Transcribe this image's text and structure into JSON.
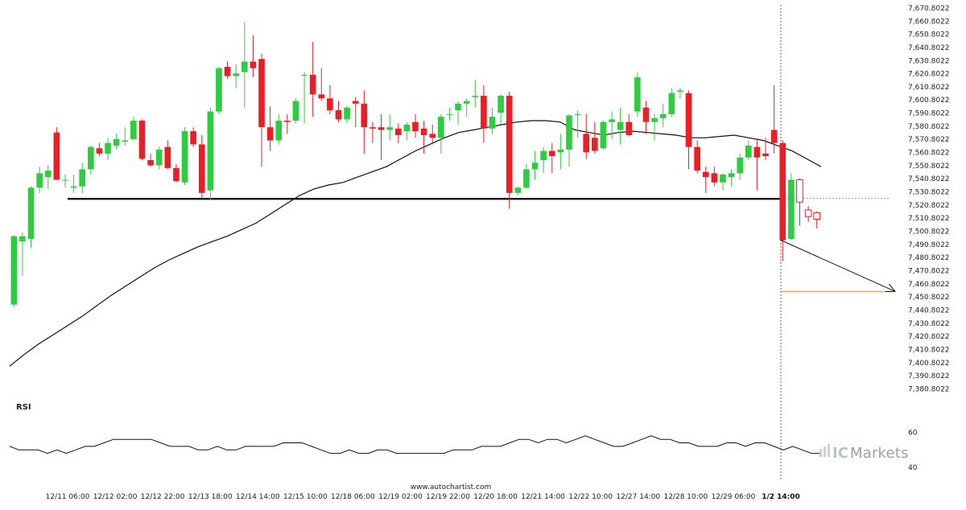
{
  "chart_data": {
    "type": "candlestick",
    "subtitle": "",
    "x_tick_labels": [
      "12/11 06:00",
      "12/12 02:00",
      "12/12 22:00",
      "12/13 18:00",
      "12/14 14:00",
      "12/15 10:00",
      "12/18 06:00",
      "12/19 02:00",
      "12/19 22:00",
      "12/20 18:00",
      "12/21 14:00",
      "12/22 10:00",
      "12/27 14:00",
      "12/28 10:00",
      "12/29 06:00",
      "1/2 14:00"
    ],
    "current_marker_label": "1/2 14:00",
    "y_ticks": [
      7380.8022,
      7390.8022,
      7400.8022,
      7410.8022,
      7420.8022,
      7430.8022,
      7440.8022,
      7450.8022,
      7460.8022,
      7470.8022,
      7480.8022,
      7490.8022,
      7500.8022,
      7510.8022,
      7520.8022,
      7530.8022,
      7540.8022,
      7550.8022,
      7560.8022,
      7570.8022,
      7580.8022,
      7590.8022,
      7600.8022,
      7610.8022,
      7620.8022,
      7630.8022,
      7640.8022,
      7650.8022,
      7660.8022,
      7670.8022
    ],
    "ylim": [
      7378,
      7672
    ],
    "candles": [
      {
        "o": 7445,
        "h": 7498,
        "l": 7443,
        "c": 7497
      },
      {
        "o": 7493,
        "h": 7500,
        "l": 7467,
        "c": 7497
      },
      {
        "o": 7495,
        "h": 7535,
        "l": 7488,
        "c": 7534
      },
      {
        "o": 7534,
        "h": 7550,
        "l": 7530,
        "c": 7545
      },
      {
        "o": 7542,
        "h": 7551,
        "l": 7533,
        "c": 7547
      },
      {
        "o": 7576,
        "h": 7580,
        "l": 7540,
        "c": 7540
      },
      {
        "o": 7540,
        "h": 7544,
        "l": 7534,
        "c": 7540
      },
      {
        "o": 7534,
        "h": 7544,
        "l": 7530,
        "c": 7535
      },
      {
        "o": 7535,
        "h": 7553,
        "l": 7530,
        "c": 7548
      },
      {
        "o": 7548,
        "h": 7566,
        "l": 7544,
        "c": 7565
      },
      {
        "o": 7564,
        "h": 7568,
        "l": 7558,
        "c": 7560
      },
      {
        "o": 7560,
        "h": 7572,
        "l": 7555,
        "c": 7568
      },
      {
        "o": 7566,
        "h": 7575,
        "l": 7563,
        "c": 7571
      },
      {
        "o": 7569,
        "h": 7580,
        "l": 7566,
        "c": 7570
      },
      {
        "o": 7571,
        "h": 7588,
        "l": 7570,
        "c": 7585
      },
      {
        "o": 7585,
        "h": 7586,
        "l": 7555,
        "c": 7556
      },
      {
        "o": 7555,
        "h": 7560,
        "l": 7550,
        "c": 7551
      },
      {
        "o": 7551,
        "h": 7565,
        "l": 7548,
        "c": 7563
      },
      {
        "o": 7565,
        "h": 7570,
        "l": 7548,
        "c": 7549
      },
      {
        "o": 7549,
        "h": 7552,
        "l": 7538,
        "c": 7539
      },
      {
        "o": 7538,
        "h": 7580,
        "l": 7536,
        "c": 7577
      },
      {
        "o": 7577,
        "h": 7580,
        "l": 7565,
        "c": 7567
      },
      {
        "o": 7567,
        "h": 7574,
        "l": 7526,
        "c": 7530
      },
      {
        "o": 7532,
        "h": 7595,
        "l": 7525,
        "c": 7592
      },
      {
        "o": 7592,
        "h": 7626,
        "l": 7590,
        "c": 7625
      },
      {
        "o": 7626,
        "h": 7630,
        "l": 7617,
        "c": 7619
      },
      {
        "o": 7619,
        "h": 7628,
        "l": 7610,
        "c": 7621
      },
      {
        "o": 7622,
        "h": 7660,
        "l": 7595,
        "c": 7630
      },
      {
        "o": 7630,
        "h": 7650,
        "l": 7618,
        "c": 7625
      },
      {
        "o": 7632,
        "h": 7636,
        "l": 7550,
        "c": 7580
      },
      {
        "o": 7580,
        "h": 7596,
        "l": 7562,
        "c": 7570
      },
      {
        "o": 7570,
        "h": 7590,
        "l": 7567,
        "c": 7585
      },
      {
        "o": 7585,
        "h": 7590,
        "l": 7575,
        "c": 7584
      },
      {
        "o": 7585,
        "h": 7602,
        "l": 7583,
        "c": 7600
      },
      {
        "o": 7620,
        "h": 7622,
        "l": 7583,
        "c": 7620
      },
      {
        "o": 7620,
        "h": 7645,
        "l": 7588,
        "c": 7605
      },
      {
        "o": 7605,
        "h": 7625,
        "l": 7600,
        "c": 7602
      },
      {
        "o": 7602,
        "h": 7612,
        "l": 7590,
        "c": 7593
      },
      {
        "o": 7593,
        "h": 7600,
        "l": 7584,
        "c": 7586
      },
      {
        "o": 7586,
        "h": 7596,
        "l": 7583,
        "c": 7595
      },
      {
        "o": 7600,
        "h": 7603,
        "l": 7580,
        "c": 7598
      },
      {
        "o": 7598,
        "h": 7608,
        "l": 7560,
        "c": 7580
      },
      {
        "o": 7580,
        "h": 7584,
        "l": 7568,
        "c": 7579
      },
      {
        "o": 7580,
        "h": 7590,
        "l": 7555,
        "c": 7578
      },
      {
        "o": 7578,
        "h": 7590,
        "l": 7570,
        "c": 7580
      },
      {
        "o": 7579,
        "h": 7583,
        "l": 7568,
        "c": 7574
      },
      {
        "o": 7577,
        "h": 7584,
        "l": 7570,
        "c": 7582
      },
      {
        "o": 7584,
        "h": 7590,
        "l": 7572,
        "c": 7577
      },
      {
        "o": 7579,
        "h": 7585,
        "l": 7560,
        "c": 7574
      },
      {
        "o": 7575,
        "h": 7582,
        "l": 7567,
        "c": 7572
      },
      {
        "o": 7572,
        "h": 7590,
        "l": 7560,
        "c": 7588
      },
      {
        "o": 7590,
        "h": 7595,
        "l": 7585,
        "c": 7590
      },
      {
        "o": 7593,
        "h": 7600,
        "l": 7582,
        "c": 7598
      },
      {
        "o": 7598,
        "h": 7602,
        "l": 7588,
        "c": 7600
      },
      {
        "o": 7603,
        "h": 7616,
        "l": 7595,
        "c": 7604
      },
      {
        "o": 7604,
        "h": 7612,
        "l": 7568,
        "c": 7579
      },
      {
        "o": 7579,
        "h": 7595,
        "l": 7575,
        "c": 7588
      },
      {
        "o": 7591,
        "h": 7605,
        "l": 7582,
        "c": 7604
      },
      {
        "o": 7604,
        "h": 7607,
        "l": 7518,
        "c": 7530
      },
      {
        "o": 7530,
        "h": 7535,
        "l": 7528,
        "c": 7534
      },
      {
        "o": 7534,
        "h": 7552,
        "l": 7533,
        "c": 7548
      },
      {
        "o": 7548,
        "h": 7562,
        "l": 7540,
        "c": 7553
      },
      {
        "o": 7555,
        "h": 7565,
        "l": 7545,
        "c": 7562
      },
      {
        "o": 7562,
        "h": 7568,
        "l": 7545,
        "c": 7558
      },
      {
        "o": 7561,
        "h": 7575,
        "l": 7548,
        "c": 7563
      },
      {
        "o": 7563,
        "h": 7590,
        "l": 7550,
        "c": 7589
      },
      {
        "o": 7590,
        "h": 7593,
        "l": 7572,
        "c": 7590
      },
      {
        "o": 7575,
        "h": 7590,
        "l": 7556,
        "c": 7561
      },
      {
        "o": 7572,
        "h": 7584,
        "l": 7560,
        "c": 7562
      },
      {
        "o": 7564,
        "h": 7585,
        "l": 7563,
        "c": 7584
      },
      {
        "o": 7584,
        "h": 7592,
        "l": 7571,
        "c": 7586
      },
      {
        "o": 7578,
        "h": 7595,
        "l": 7567,
        "c": 7584
      },
      {
        "o": 7584,
        "h": 7590,
        "l": 7573,
        "c": 7574
      },
      {
        "o": 7592,
        "h": 7622,
        "l": 7588,
        "c": 7618
      },
      {
        "o": 7595,
        "h": 7600,
        "l": 7575,
        "c": 7584
      },
      {
        "o": 7584,
        "h": 7590,
        "l": 7570,
        "c": 7587
      },
      {
        "o": 7587,
        "h": 7598,
        "l": 7580,
        "c": 7590
      },
      {
        "o": 7590,
        "h": 7610,
        "l": 7588,
        "c": 7606
      },
      {
        "o": 7607,
        "h": 7610,
        "l": 7602,
        "c": 7608
      },
      {
        "o": 7606,
        "h": 7608,
        "l": 7548,
        "c": 7565
      },
      {
        "o": 7565,
        "h": 7570,
        "l": 7545,
        "c": 7547
      },
      {
        "o": 7546,
        "h": 7550,
        "l": 7530,
        "c": 7542
      },
      {
        "o": 7545,
        "h": 7550,
        "l": 7535,
        "c": 7538
      },
      {
        "o": 7538,
        "h": 7545,
        "l": 7532,
        "c": 7544
      },
      {
        "o": 7542,
        "h": 7548,
        "l": 7535,
        "c": 7545
      },
      {
        "o": 7545,
        "h": 7560,
        "l": 7540,
        "c": 7557
      },
      {
        "o": 7557,
        "h": 7570,
        "l": 7555,
        "c": 7566
      },
      {
        "o": 7565,
        "h": 7571,
        "l": 7532,
        "c": 7557
      },
      {
        "o": 7560,
        "h": 7572,
        "l": 7555,
        "c": 7558
      },
      {
        "o": 7578,
        "h": 7612,
        "l": 7560,
        "c": 7568
      },
      {
        "o": 7568,
        "h": 7570,
        "l": 7478,
        "c": 7494
      },
      {
        "o": 7495,
        "h": 7545,
        "l": 7494,
        "c": 7540
      },
      {
        "o": 7540,
        "h": 7541,
        "l": 7505,
        "c": 7523
      },
      {
        "o": 7517,
        "h": 7520,
        "l": 7508,
        "c": 7512
      },
      {
        "o": 7515,
        "h": 7516,
        "l": 7503,
        "c": 7510
      }
    ],
    "candle_style": {
      "up_color": "#2ecc40",
      "down_color": "#ee1c25",
      "hollow_last": 3
    },
    "moving_average": [
      7398,
      7407,
      7415,
      7422,
      7429,
      7436,
      7444,
      7452,
      7459,
      7466,
      7473,
      7479,
      7484,
      7489,
      7493,
      7497,
      7502,
      7507,
      7514,
      7521,
      7528,
      7533,
      7536,
      7538,
      7542,
      7546,
      7550,
      7556,
      7562,
      7567,
      7572,
      7576,
      7578,
      7580,
      7582,
      7584,
      7585,
      7585,
      7584,
      7578,
      7576,
      7574,
      7576,
      7577,
      7576,
      7575,
      7574,
      7572,
      7572,
      7573,
      7574,
      7572,
      7570,
      7566,
      7562,
      7556,
      7550
    ],
    "support_level": 7525.5,
    "support_x_range": [
      0.235,
      0.98
    ],
    "target_level": 7455,
    "forecast_arrow": {
      "from_price": 7494,
      "to_price": 7455
    },
    "last_price_level": 7526,
    "rsi": {
      "title": "RSI",
      "y_ticks": [
        40,
        60
      ],
      "ylim": [
        35,
        68
      ],
      "values": [
        52,
        50,
        50,
        50,
        48,
        50,
        48,
        50,
        52,
        52,
        54,
        56,
        56,
        56,
        56,
        56,
        54,
        52,
        52,
        52,
        50,
        50,
        52,
        50,
        50,
        52,
        52,
        52,
        52,
        54,
        54,
        54,
        52,
        50,
        48,
        48,
        50,
        48,
        48,
        50,
        50,
        48,
        48,
        48,
        48,
        48,
        48,
        50,
        50,
        50,
        52,
        52,
        52,
        54,
        56,
        56,
        54,
        56,
        56,
        54,
        56,
        58,
        56,
        54,
        52,
        52,
        54,
        56,
        58,
        56,
        56,
        54,
        54,
        52,
        52,
        52,
        54,
        54,
        52,
        54,
        54,
        52,
        50,
        52,
        50,
        48,
        48
      ]
    },
    "watermark": "www.autochartist.com",
    "brand_prefix": "IC",
    "brand_suffix": "Markets"
  }
}
